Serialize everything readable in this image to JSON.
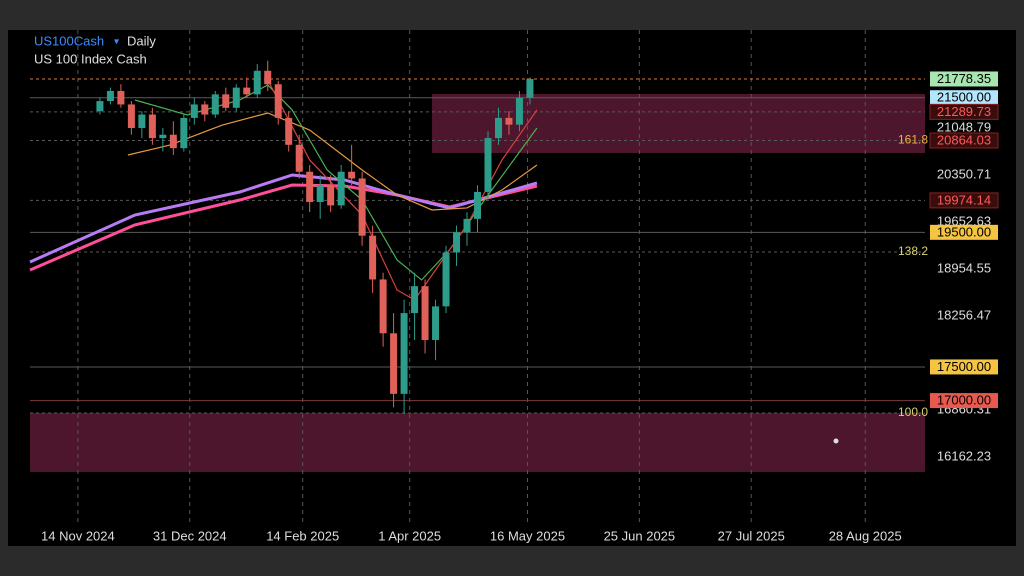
{
  "chart_data": {
    "type": "candlestick",
    "symbol": "US100Cash",
    "timeframe": "Daily",
    "subtitle": "US 100 Index Cash",
    "xlim": [
      0,
      256
    ],
    "ylim": [
      15226,
      22506
    ],
    "xticks": [
      {
        "value": 13.7,
        "label": "14 Nov 2024"
      },
      {
        "value": 45.7,
        "label": "31 Dec 2024"
      },
      {
        "value": 78,
        "label": "14 Feb 2025"
      },
      {
        "value": 108.6,
        "label": "1 Apr 2025"
      },
      {
        "value": 142.3,
        "label": "16 May 2025"
      },
      {
        "value": 174.3,
        "label": "25 Jun 2025"
      },
      {
        "value": 206.3,
        "label": "27 Jul 2025"
      },
      {
        "value": 238.9,
        "label": "28 Aug 2025"
      }
    ],
    "yticks": [
      21048.79,
      20350.71,
      19652.63,
      18954.55,
      18256.47,
      16860.31,
      16162.23
    ],
    "up_color": "#2e9c8a",
    "down_color": "#e0605a",
    "candles": {
      "x": [
        20,
        23,
        26,
        29,
        32,
        35,
        38,
        41,
        44,
        47,
        50,
        53,
        56,
        59,
        62,
        65,
        68,
        71,
        74,
        77,
        80,
        83,
        86,
        89,
        92,
        95,
        98,
        101,
        104,
        107,
        110,
        113,
        116,
        119,
        122,
        125,
        128,
        131,
        134,
        137,
        140,
        143
      ],
      "open": [
        21300,
        21450,
        21600,
        21400,
        21050,
        21250,
        20900,
        20950,
        20750,
        21200,
        21400,
        21250,
        21550,
        21350,
        21650,
        21550,
        21900,
        21700,
        21200,
        20800,
        20400,
        19950,
        20200,
        19900,
        20400,
        20300,
        19450,
        18800,
        18000,
        17100,
        18300,
        18700,
        17900,
        18400,
        19200,
        19500,
        19700,
        20100,
        20900,
        21200,
        21100,
        21500
      ],
      "high": [
        21500,
        21650,
        21700,
        21450,
        21300,
        21350,
        21050,
        21150,
        21250,
        21500,
        21450,
        21600,
        21650,
        21700,
        21800,
        22000,
        22050,
        21750,
        21300,
        20950,
        20500,
        20350,
        20350,
        20500,
        20800,
        20400,
        19600,
        18900,
        18300,
        18500,
        18900,
        18800,
        18500,
        19300,
        19600,
        19800,
        20200,
        21000,
        21350,
        21300,
        21600,
        21800
      ],
      "low": [
        21250,
        21400,
        21350,
        20950,
        20900,
        20800,
        20700,
        20650,
        20700,
        21100,
        21150,
        21200,
        21300,
        21300,
        21500,
        21500,
        21600,
        21100,
        20700,
        20300,
        19800,
        19700,
        19800,
        19850,
        20200,
        19300,
        18600,
        17800,
        16900,
        16800,
        17900,
        17700,
        17600,
        18300,
        19000,
        19300,
        19500,
        20000,
        20800,
        20950,
        21000,
        21400
      ],
      "close": [
        21450,
        21600,
        21400,
        21050,
        21250,
        20900,
        20950,
        20750,
        21200,
        21400,
        21250,
        21550,
        21350,
        21650,
        21550,
        21900,
        21700,
        21200,
        20800,
        20400,
        19950,
        20200,
        19900,
        20400,
        20300,
        19450,
        18800,
        18000,
        17100,
        18300,
        18700,
        17900,
        18400,
        19200,
        19500,
        19700,
        20100,
        20900,
        21200,
        21100,
        21500,
        21778.35
      ]
    },
    "series": [
      {
        "color": "#ff4f9a",
        "x": [
          0,
          30,
          60,
          75,
          90,
          105,
          120,
          145
        ],
        "values": [
          18940,
          19610,
          19980,
          20203,
          20188,
          20055,
          19876,
          20188
        ]
      },
      {
        "color": "#b77cf5",
        "x": [
          0,
          30,
          60,
          75,
          90,
          105,
          120,
          145
        ],
        "values": [
          19059,
          19757,
          20099,
          20352,
          20278,
          20055,
          19862,
          20233
        ]
      },
      {
        "color": "#e89a3c",
        "x": [
          28,
          40,
          55,
          68,
          80,
          95,
          105,
          115,
          125,
          135,
          145
        ],
        "values": [
          20649,
          20797,
          21094,
          21273,
          21020,
          20426,
          20055,
          19832,
          19862,
          20129,
          20500
        ]
      },
      {
        "color": "#4caf50",
        "x": [
          30,
          45,
          60,
          68,
          75,
          85,
          95,
          105,
          112,
          120,
          130,
          145
        ],
        "values": [
          21466,
          21243,
          21466,
          21689,
          21317,
          20426,
          19980,
          19090,
          18792,
          19238,
          19980,
          21050
        ]
      },
      {
        "color": "#d84040",
        "x": [
          68,
          80,
          95,
          105,
          110,
          118,
          125,
          135,
          145
        ],
        "values": [
          21763,
          20575,
          19757,
          18643,
          18495,
          19089,
          19609,
          20575,
          21317
        ]
      }
    ],
    "zones": [
      {
        "x0": 115,
        "top": 21555,
        "bottom": 20679,
        "color": "#5c1a35"
      },
      {
        "x0": 0,
        "top": 16816,
        "bottom": 15940,
        "color": "#5c1a35"
      }
    ],
    "levels": [
      {
        "price": 21778.35,
        "color": "#e0783c",
        "dashed": true
      },
      {
        "price": 21500,
        "color": "#5a5a5a",
        "dashed": false
      },
      {
        "price": 21289.73,
        "color": "#5a5a5a",
        "dashed": true
      },
      {
        "price": 19974.14,
        "color": "#5a5a5a",
        "dashed": true
      },
      {
        "price": 19500,
        "color": "#5a5a5a",
        "dashed": false
      },
      {
        "price": 17500,
        "color": "#5a5a5a",
        "dashed": false
      },
      {
        "price": 17000,
        "color": "#7a3c3c",
        "dashed": false
      }
    ],
    "fibs": [
      {
        "ratio": 161.8,
        "price": 20864.03,
        "color": "#f0b040"
      },
      {
        "ratio": 138.2,
        "price": 19208,
        "color": "#d8d36a"
      },
      {
        "ratio": {
          "value": 100,
          "label": "100.0"
        },
        "price": 16816,
        "color": "#d8d36a"
      }
    ],
    "price_tags": [
      {
        "price": 21778.35,
        "bg": "#a8e6b0",
        "fg": "#000000"
      },
      {
        "price": 21500,
        "label": "21500.00",
        "bg": "#b3e5fc",
        "fg": "#000000"
      },
      {
        "price": 21289.73,
        "bg": "#3a0d0d",
        "fg": "#ff5a5a"
      },
      {
        "price": 20864.03,
        "bg": "#3a0d0d",
        "fg": "#ff5a5a"
      },
      {
        "price": 19974.14,
        "bg": "#3a0d0d",
        "fg": "#ff5a5a"
      },
      {
        "price": 19500,
        "label": "19500.00",
        "bg": "#f5c542",
        "fg": "#000000"
      },
      {
        "price": 17500,
        "label": "17500.00",
        "bg": "#f5c542",
        "fg": "#000000"
      },
      {
        "price": 17000,
        "label": "17000.00",
        "bg": "#e85a4f",
        "fg": "#000000"
      }
    ]
  }
}
